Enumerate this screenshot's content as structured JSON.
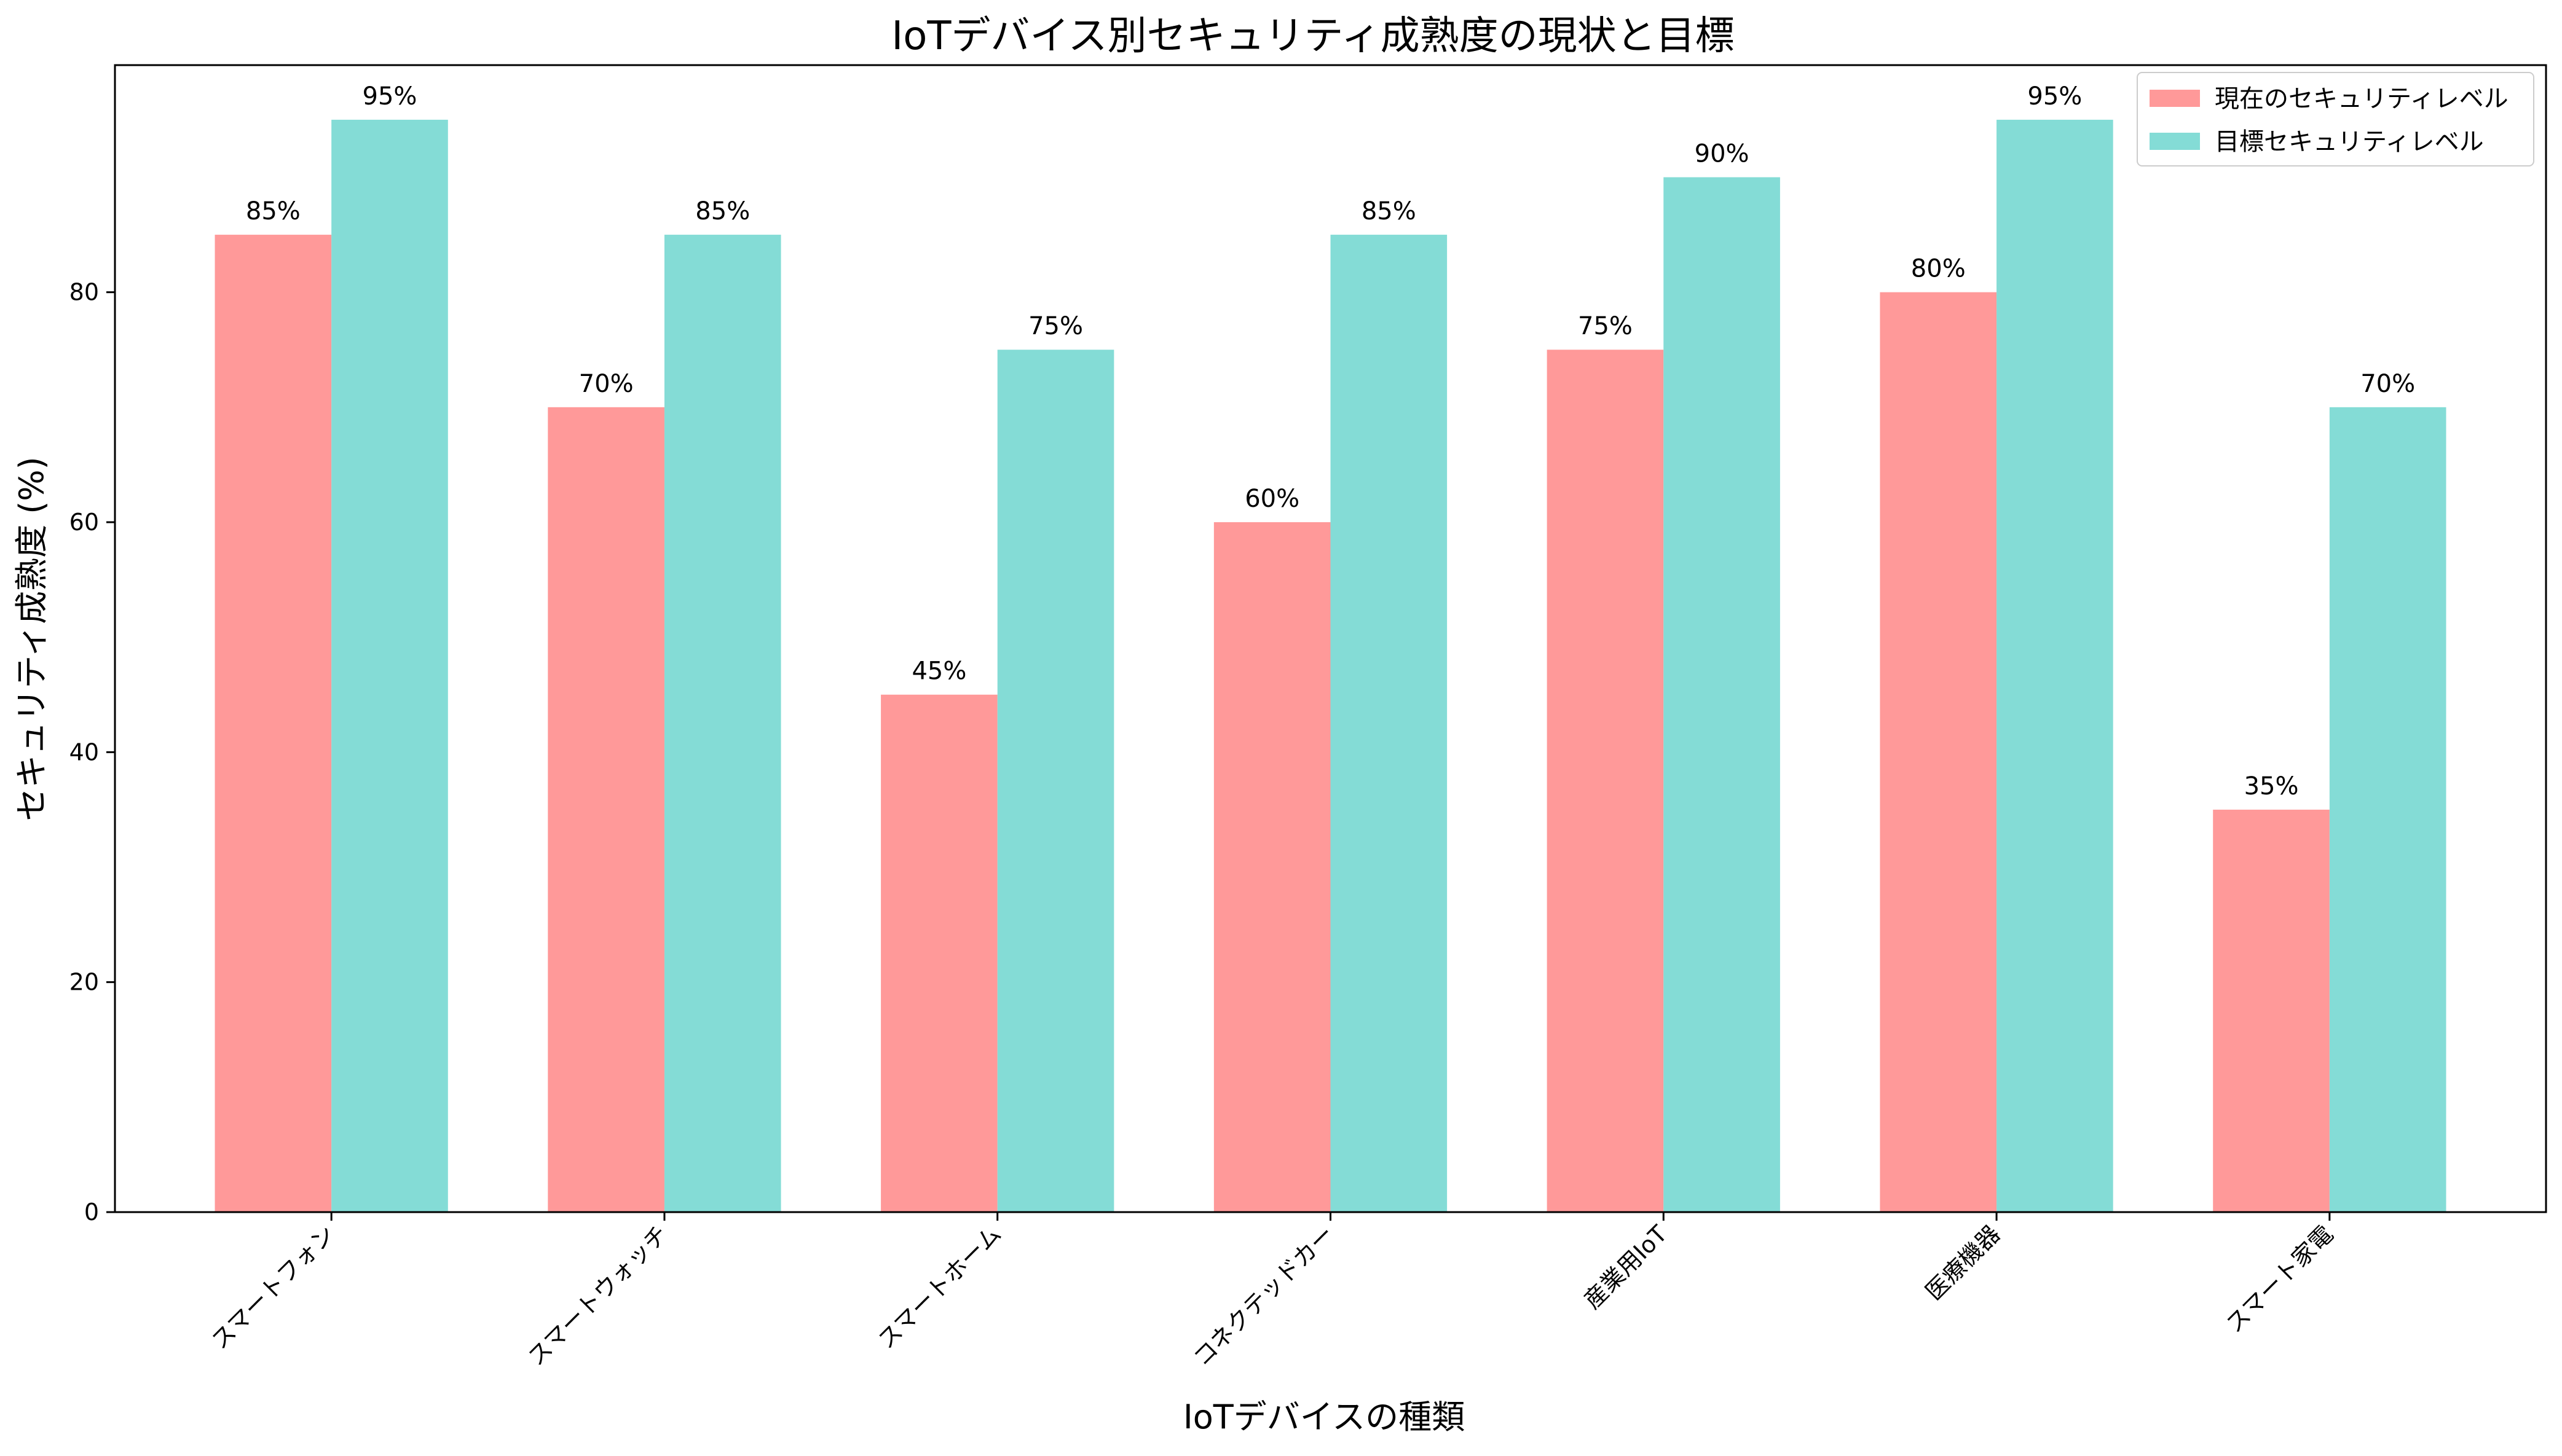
{
  "chart_data": {
    "type": "bar",
    "title": "IoTデバイス別セキュリティ成熟度の現状と目標",
    "xlabel": "IoTデバイスの種類",
    "ylabel": "セキュリティ成熟度 (%)",
    "categories": [
      "スマートフォン",
      "スマートウォッチ",
      "スマートホーム",
      "コネクテッドカー",
      "産業用IoT",
      "医療機器",
      "スマート家電"
    ],
    "series": [
      {
        "name": "現在のセキュリティレベル",
        "values": [
          85,
          70,
          45,
          60,
          75,
          80,
          35
        ],
        "color": "#FF9999"
      },
      {
        "name": "目標セキュリティレベル",
        "values": [
          95,
          85,
          75,
          85,
          90,
          95,
          70
        ],
        "color": "#84DCD6"
      }
    ],
    "value_label_suffix": "%",
    "ylim": [
      0,
      99.75
    ],
    "yticks": [
      0,
      20,
      40,
      60,
      80
    ],
    "grid": false,
    "legend": "top-right"
  }
}
